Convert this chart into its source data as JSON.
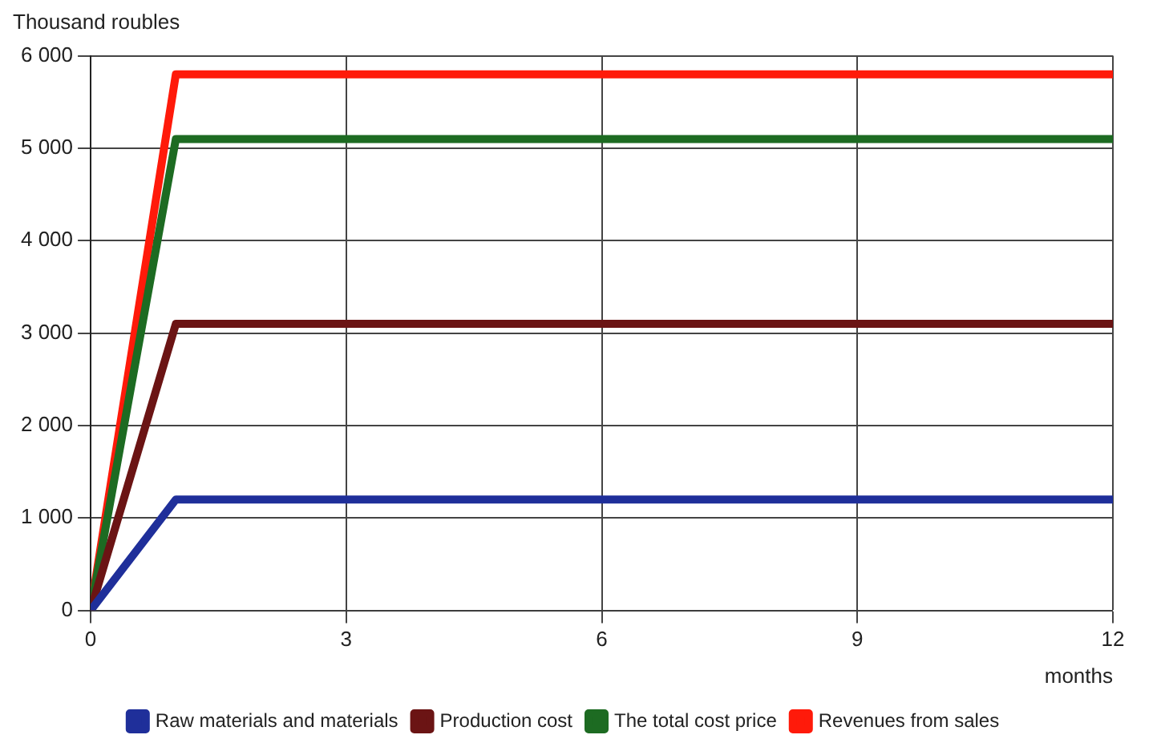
{
  "chart_data": {
    "type": "line",
    "ylabel": "Thousand roubles",
    "xlabel": "months",
    "x": [
      0,
      1,
      2,
      3,
      4,
      5,
      6,
      7,
      8,
      9,
      10,
      11,
      12
    ],
    "xlim": [
      0,
      12
    ],
    "xticks": [
      0,
      3,
      6,
      9,
      12
    ],
    "ylim": [
      0,
      6000
    ],
    "yticks": [
      0,
      {
        "value": 1000,
        "label": "1 000"
      },
      {
        "value": 2000,
        "label": "2 000"
      },
      {
        "value": 3000,
        "label": "3 000"
      },
      {
        "value": 4000,
        "label": "4 000"
      },
      {
        "value": 5000,
        "label": "5 000"
      },
      {
        "value": 6000,
        "label": "6 000"
      }
    ],
    "series": [
      {
        "name": "Raw materials and materials",
        "color": "#1f2f9a",
        "values": [
          0,
          1200,
          1200,
          1200,
          1200,
          1200,
          1200,
          1200,
          1200,
          1200,
          1200,
          1200,
          1200
        ]
      },
      {
        "name": "Production cost",
        "color": "#6b1414",
        "values": [
          0,
          3100,
          3100,
          3100,
          3100,
          3100,
          3100,
          3100,
          3100,
          3100,
          3100,
          3100,
          3100
        ]
      },
      {
        "name": "The total cost price",
        "color": "#1d6b22",
        "values": [
          0,
          5100,
          5100,
          5100,
          5100,
          5100,
          5100,
          5100,
          5100,
          5100,
          5100,
          5100,
          5100
        ]
      },
      {
        "name": "Revenues from sales",
        "color": "#ff1a0a",
        "values": [
          0,
          5800,
          5800,
          5800,
          5800,
          5800,
          5800,
          5800,
          5800,
          5800,
          5800,
          5800,
          5800
        ]
      }
    ],
    "grid": true,
    "legend": "bottom",
    "marker": "none",
    "line_style": "solid"
  }
}
